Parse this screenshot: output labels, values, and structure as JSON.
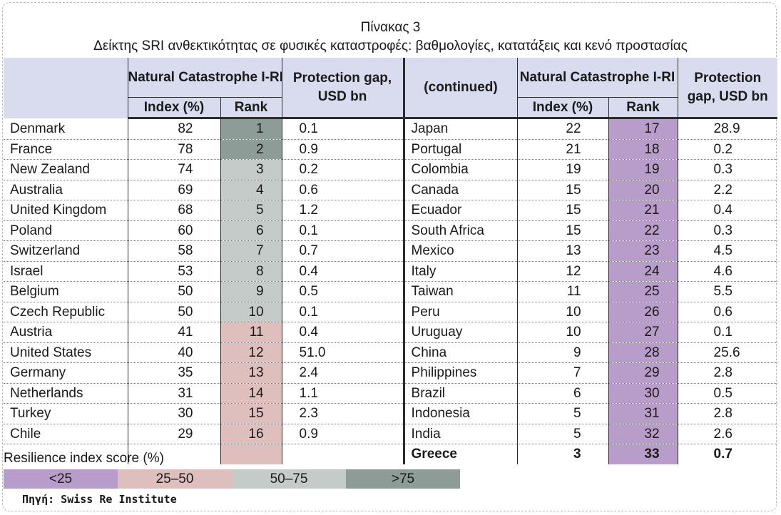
{
  "title": "Πίνακας 3",
  "subtitle": "Δείκτης SRI ανθεκτικότητας σε φυσικές καταστροφές: βαθμολογίες, κατατάξεις και κενό προστασίας",
  "headers": {
    "natcat": "Natural Catastrophe I-RI",
    "index": "Index (%)",
    "rank": "Rank",
    "gap": "Protection gap, USD bn",
    "continued": "(continued)"
  },
  "left_rows": [
    {
      "country": "Denmark",
      "index": "82",
      "rank": "1",
      "gap": "0.1"
    },
    {
      "country": "France",
      "index": "78",
      "rank": "2",
      "gap": "0.9"
    },
    {
      "country": "New Zealand",
      "index": "74",
      "rank": "3",
      "gap": "0.2"
    },
    {
      "country": "Australia",
      "index": "69",
      "rank": "4",
      "gap": "0.6"
    },
    {
      "country": "United Kingdom",
      "index": "68",
      "rank": "5",
      "gap": "1.2"
    },
    {
      "country": "Poland",
      "index": "60",
      "rank": "6",
      "gap": "0.1"
    },
    {
      "country": "Switzerland",
      "index": "58",
      "rank": "7",
      "gap": "0.7"
    },
    {
      "country": "Israel",
      "index": "53",
      "rank": "8",
      "gap": "0.4"
    },
    {
      "country": "Belgium",
      "index": "50",
      "rank": "9",
      "gap": "0.5"
    },
    {
      "country": "Czech Republic",
      "index": "50",
      "rank": "10",
      "gap": "0.1"
    },
    {
      "country": "Austria",
      "index": "41",
      "rank": "11",
      "gap": "0.4"
    },
    {
      "country": "United States",
      "index": "40",
      "rank": "12",
      "gap": "51.0"
    },
    {
      "country": "Germany",
      "index": "35",
      "rank": "13",
      "gap": "2.4"
    },
    {
      "country": "Netherlands",
      "index": "31",
      "rank": "14",
      "gap": "1.1"
    },
    {
      "country": "Turkey",
      "index": "30",
      "rank": "15",
      "gap": "2.3"
    },
    {
      "country": "Chile",
      "index": "29",
      "rank": "16",
      "gap": "0.9"
    }
  ],
  "right_rows": [
    {
      "country": "Japan",
      "index": "22",
      "rank": "17",
      "gap": "28.9"
    },
    {
      "country": "Portugal",
      "index": "21",
      "rank": "18",
      "gap": "0.2"
    },
    {
      "country": "Colombia",
      "index": "19",
      "rank": "19",
      "gap": "0.3"
    },
    {
      "country": "Canada",
      "index": "15",
      "rank": "20",
      "gap": "2.2"
    },
    {
      "country": "Ecuador",
      "index": "15",
      "rank": "21",
      "gap": "0.4"
    },
    {
      "country": "South Africa",
      "index": "15",
      "rank": "22",
      "gap": "0.3"
    },
    {
      "country": "Mexico",
      "index": "13",
      "rank": "23",
      "gap": "4.5"
    },
    {
      "country": "Italy",
      "index": "12",
      "rank": "24",
      "gap": "4.6"
    },
    {
      "country": "Taiwan",
      "index": "11",
      "rank": "25",
      "gap": "5.5"
    },
    {
      "country": "Peru",
      "index": "10",
      "rank": "26",
      "gap": "0.6"
    },
    {
      "country": "Uruguay",
      "index": "10",
      "rank": "27",
      "gap": "0.1"
    },
    {
      "country": "China",
      "index": "9",
      "rank": "28",
      "gap": "25.6"
    },
    {
      "country": "Philippines",
      "index": "7",
      "rank": "29",
      "gap": "2.8"
    },
    {
      "country": "Brazil",
      "index": "6",
      "rank": "30",
      "gap": "0.5"
    },
    {
      "country": "Indonesia",
      "index": "5",
      "rank": "31",
      "gap": "2.8"
    },
    {
      "country": "India",
      "index": "5",
      "rank": "32",
      "gap": "2.6"
    }
  ],
  "greece_row": {
    "country": "Greece",
    "index": "3",
    "rank": "33",
    "gap": "0.7"
  },
  "legend": {
    "title": "Resilience index score (%)",
    "items": [
      {
        "label": "<25",
        "color": "#b89cc9"
      },
      {
        "label": "25–50",
        "color": "#dfbebe"
      },
      {
        "label": "50–75",
        "color": "#c5cbc8"
      },
      {
        "label": ">75",
        "color": "#8d9c97"
      }
    ]
  },
  "source": "Πηγή: Swiss Re Institute"
}
